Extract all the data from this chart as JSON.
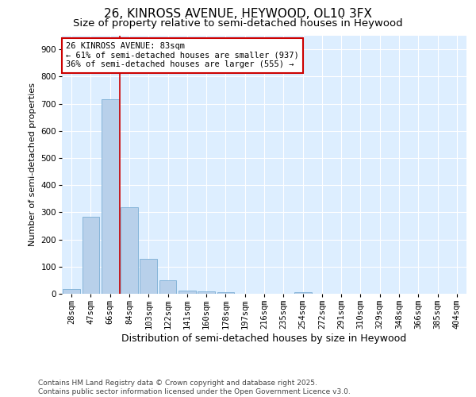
{
  "title_line1": "26, KINROSS AVENUE, HEYWOOD, OL10 3FX",
  "title_line2": "Size of property relative to semi-detached houses in Heywood",
  "xlabel": "Distribution of semi-detached houses by size in Heywood",
  "ylabel": "Number of semi-detached properties",
  "categories": [
    "28sqm",
    "47sqm",
    "66sqm",
    "84sqm",
    "103sqm",
    "122sqm",
    "141sqm",
    "160sqm",
    "178sqm",
    "197sqm",
    "216sqm",
    "235sqm",
    "254sqm",
    "272sqm",
    "291sqm",
    "310sqm",
    "329sqm",
    "348sqm",
    "366sqm",
    "385sqm",
    "404sqm"
  ],
  "values": [
    18,
    285,
    715,
    320,
    130,
    50,
    13,
    10,
    5,
    0,
    0,
    0,
    5,
    0,
    0,
    0,
    0,
    0,
    0,
    0,
    0
  ],
  "bar_color": "#b8d0ea",
  "bar_edge_color": "#7aadd4",
  "vline_color": "#cc0000",
  "annotation_title": "26 KINROSS AVENUE: 83sqm",
  "annotation_line1": "← 61% of semi-detached houses are smaller (937)",
  "annotation_line2": "36% of semi-detached houses are larger (555) →",
  "annotation_box_color": "#cc0000",
  "ylim": [
    0,
    950
  ],
  "yticks": [
    0,
    100,
    200,
    300,
    400,
    500,
    600,
    700,
    800,
    900
  ],
  "bg_color": "#ddeeff",
  "grid_color": "#ffffff",
  "footer_line1": "Contains HM Land Registry data © Crown copyright and database right 2025.",
  "footer_line2": "Contains public sector information licensed under the Open Government Licence v3.0.",
  "title_fontsize": 11,
  "subtitle_fontsize": 9.5,
  "xlabel_fontsize": 9,
  "ylabel_fontsize": 8,
  "tick_fontsize": 7.5,
  "annotation_fontsize": 7.5,
  "footer_fontsize": 6.5
}
